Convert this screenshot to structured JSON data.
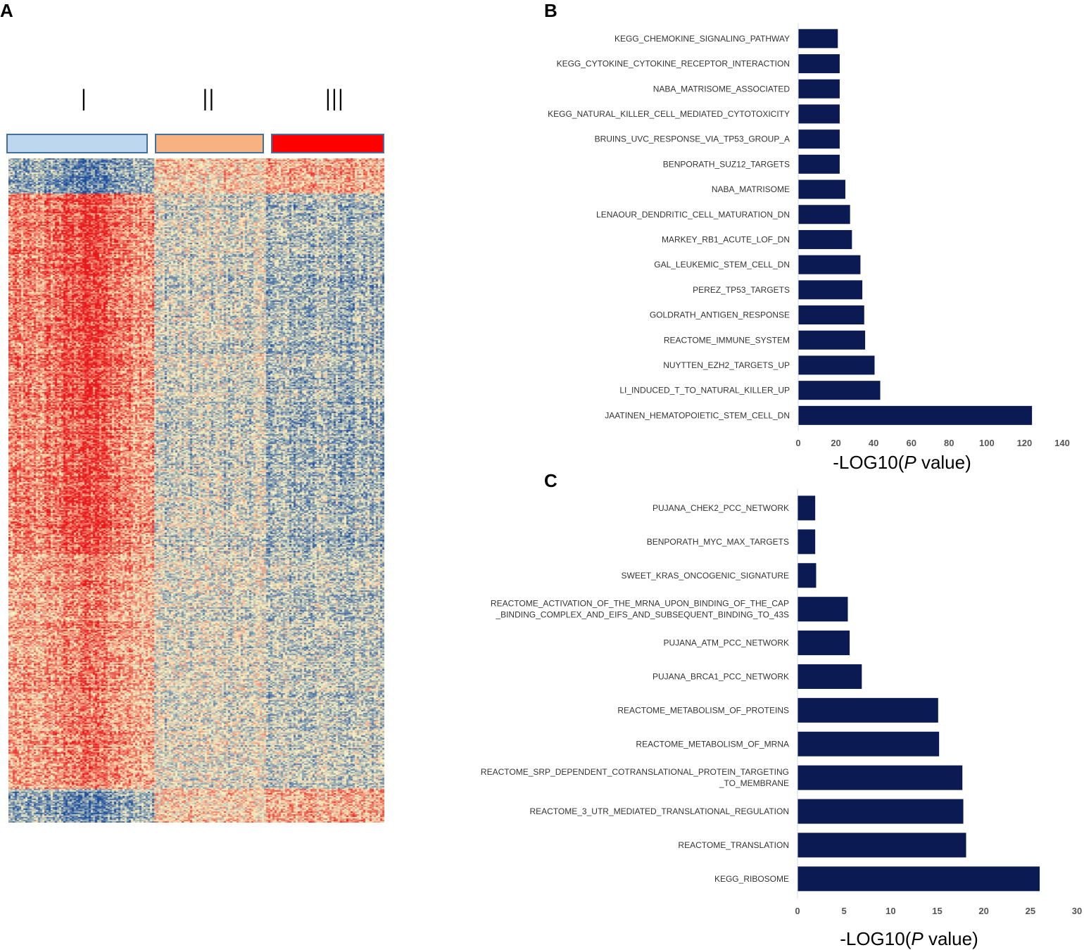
{
  "panels": {
    "a": "A",
    "b": "B",
    "c": "C"
  },
  "heatmap": {
    "clusters": [
      {
        "label": "I",
        "color": "#bdd7ee"
      },
      {
        "label": "II",
        "color": "#f8b282"
      },
      {
        "label": "III",
        "color": "#ff0000"
      }
    ],
    "colors": {
      "high": "#e8191c",
      "mid": "#f9f3c4",
      "low": "#1d4f9f"
    }
  },
  "bar_color": "#0b1a52",
  "chart_data": [
    {
      "type": "bar",
      "orientation": "horizontal",
      "panel": "B",
      "xlabel_prefix": "-LOG10(",
      "xlabel_italic": "P",
      "xlabel_suffix": " value)",
      "xlim": [
        0,
        140
      ],
      "xticks": [
        "0",
        "20",
        "40",
        "60",
        "80",
        "100",
        "120",
        "140"
      ],
      "categories": [
        "KEGG_CHEMOKINE_SIGNALING_PATHWAY",
        "KEGG_CYTOKINE_CYTOKINE_RECEPTOR_INTERACTION",
        "NABA_MATRISOME_ASSOCIATED",
        "KEGG_NATURAL_KILLER_CELL_MEDIATED_CYTOTOXICITY",
        "BRUINS_UVC_RESPONSE_VIA_TP53_GROUP_A",
        "BENPORATH_SUZ12_TARGETS",
        "NABA_MATRISOME",
        "LENAOUR_DENDRITIC_CELL_MATURATION_DN",
        "MARKEY_RB1_ACUTE_LOF_DN",
        "GAL_LEUKEMIC_STEM_CELL_DN",
        "PEREZ_TP53_TARGETS",
        "GOLDRATH_ANTIGEN_RESPONSE",
        "REACTOME_IMMUNE_SYSTEM",
        "NUYTTEN_EZH2_TARGETS_UP",
        "LI_INDUCED_T_TO_NATURAL_KILLER_UP",
        "JAATINEN_HEMATOPOIETIC_STEM_CELL_DN"
      ],
      "values": [
        21,
        22,
        22,
        22,
        22,
        22,
        25,
        27.5,
        28.5,
        33,
        34,
        35,
        35.5,
        40.5,
        43.5,
        124
      ]
    },
    {
      "type": "bar",
      "orientation": "horizontal",
      "panel": "C",
      "xlabel_prefix": "-LOG10(",
      "xlabel_italic": "P",
      "xlabel_suffix": " value)",
      "xlim": [
        0,
        30
      ],
      "xticks": [
        "0",
        "5",
        "10",
        "15",
        "20",
        "25",
        "30"
      ],
      "categories": [
        [
          "PUJANA_CHEK2_PCC_NETWORK"
        ],
        [
          "BENPORATH_MYC_MAX_TARGETS"
        ],
        [
          "SWEET_KRAS_ONCOGENIC_SIGNATURE"
        ],
        [
          "REACTOME_ACTIVATION_OF_THE_MRNA_UPON_BINDING_OF_THE_CAP",
          "_BINDING_COMPLEX_AND_EIFS_AND_SUBSEQUENT_BINDING_TO_43S"
        ],
        [
          "PUJANA_ATM_PCC_NETWORK"
        ],
        [
          "PUJANA_BRCA1_PCC_NETWORK"
        ],
        [
          "REACTOME_METABOLISM_OF_PROTEINS"
        ],
        [
          "REACTOME_METABOLISM_OF_MRNA"
        ],
        [
          "REACTOME_SRP_DEPENDENT_COTRANSLATIONAL_PROTEIN_TARGETING",
          "_TO_MEMBRANE"
        ],
        [
          "REACTOME_3_UTR_MEDIATED_TRANSLATIONAL_REGULATION"
        ],
        [
          "REACTOME_TRANSLATION"
        ],
        [
          "KEGG_RIBOSOME"
        ]
      ],
      "values": [
        1.9,
        1.9,
        2,
        5.4,
        5.6,
        6.9,
        15.1,
        15.2,
        17.7,
        17.8,
        18.1,
        26
      ]
    }
  ]
}
